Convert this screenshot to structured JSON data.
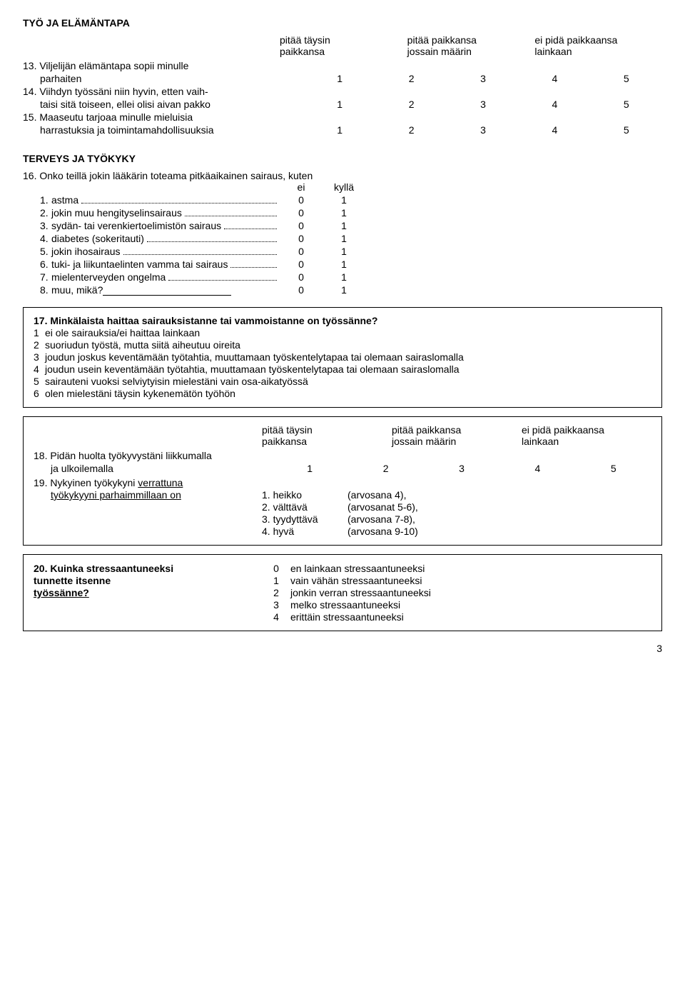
{
  "section1": {
    "title": "TYÖ JA ELÄMÄNTAPA",
    "header": {
      "col1a": "pitää täysin",
      "col1b": "paikkansa",
      "col2a": "pitää paikkansa",
      "col2b": "jossain määrin",
      "col3a": "ei pidä paikkaansa",
      "col3b": "lainkaan"
    },
    "q13": {
      "line1": "13. Viljelijän elämäntapa sopii minulle",
      "line2": "parhaiten",
      "vals": [
        "1",
        "2",
        "3",
        "4",
        "5"
      ]
    },
    "q14": {
      "line1": "14. Viihdyn työssäni niin hyvin, etten vaih-",
      "line2": "taisi sitä toiseen, ellei olisi aivan pakko",
      "vals": [
        "1",
        "2",
        "3",
        "4",
        "5"
      ]
    },
    "q15": {
      "line1": "15. Maaseutu tarjoaa minulle mieluisia",
      "line2": "harrastuksia ja toimintamahdollisuuksia",
      "vals": [
        "1",
        "2",
        "3",
        "4",
        "5"
      ]
    }
  },
  "section2": {
    "title": "TERVEYS JA TYÖKYKY",
    "q16": {
      "title": "16. Onko teillä jokin lääkärin toteama pitkäaikainen sairaus, kuten",
      "header_ei": "ei",
      "header_kylla": "kyllä",
      "items": [
        {
          "n": "1.",
          "t": "astma",
          "a": "0",
          "b": "1"
        },
        {
          "n": "2.",
          "t": "jokin muu hengityselinsairaus",
          "a": "0",
          "b": "1"
        },
        {
          "n": "3.",
          "t": "sydän- tai verenkiertoelimistön sairaus",
          "a": "0",
          "b": "1"
        },
        {
          "n": "4.",
          "t": "diabetes (sokeritauti)",
          "a": "0",
          "b": "1"
        },
        {
          "n": "5.",
          "t": "jokin ihosairaus",
          "a": "0",
          "b": "1"
        },
        {
          "n": "6.",
          "t": "tuki- ja liikuntaelinten vamma tai sairaus",
          "a": "0",
          "b": "1"
        },
        {
          "n": "7.",
          "t": "mielenterveyden ongelma",
          "a": "0",
          "b": "1"
        },
        {
          "n": "8.",
          "t": "muu, mikä?",
          "a": "0",
          "b": "1",
          "muu": true
        }
      ]
    }
  },
  "q17": {
    "title": "17. Minkälaista haittaa sairauksistanne tai vammoistanne on työssänne?",
    "opts": [
      {
        "n": "1",
        "t": "ei ole sairauksia/ei haittaa lainkaan"
      },
      {
        "n": "2",
        "t": "suoriudun työstä, mutta siitä aiheutuu oireita"
      },
      {
        "n": "3",
        "t": "joudun joskus keventämään työtahtia, muuttamaan työskentelytapaa tai olemaan sairaslomalla"
      },
      {
        "n": "4",
        "t": "joudun usein keventämään työtahtia, muuttamaan työskentelytapaa tai olemaan sairaslomalla"
      },
      {
        "n": "5",
        "t": "sairauteni vuoksi selviytyisin mielestäni vain osa-aikatyössä"
      },
      {
        "n": "6",
        "t": "olen mielestäni täysin kykenemätön työhön"
      }
    ]
  },
  "q18_19": {
    "header": {
      "col1a": "pitää täysin",
      "col1b": "paikkansa",
      "col2a": "pitää paikkansa",
      "col2b": "jossain määrin",
      "col3a": "ei pidä paikkaansa",
      "col3b": "lainkaan"
    },
    "q18": {
      "line1": "18. Pidän huolta työkyvystäni liikkumalla",
      "line2": "ja ulkoilemalla",
      "vals": [
        "1",
        "2",
        "3",
        "4",
        "5"
      ]
    },
    "q19": {
      "line1": "19. Nykyinen työkykyni ",
      "underl": "verrattuna",
      "line2u": "työkykyyni parhaimmillaan on",
      "rows": [
        {
          "m": "1. heikko",
          "r": "(arvosana 4),"
        },
        {
          "m": "2. välttävä",
          "r": "(arvosanat 5-6),"
        },
        {
          "m": "3. tyydyttävä",
          "r": "(arvosana 7-8),"
        },
        {
          "m": "4. hyvä",
          "r": "(arvosana 9-10)"
        }
      ]
    }
  },
  "q20": {
    "left1": "20.  Kuinka stressaantuneeksi",
    "left2": "tunnette itsenne",
    "left3": "työssänne?",
    "rows": [
      {
        "n": "0",
        "t": "en lainkaan stressaantuneeksi"
      },
      {
        "n": "1",
        "t": "vain vähän stressaantuneeksi"
      },
      {
        "n": "2",
        "t": "jonkin verran stressaantuneeksi"
      },
      {
        "n": "3",
        "t": "melko stressaantuneeksi"
      },
      {
        "n": "4",
        "t": "erittäin stressaantuneeksi"
      }
    ]
  },
  "page": "3"
}
